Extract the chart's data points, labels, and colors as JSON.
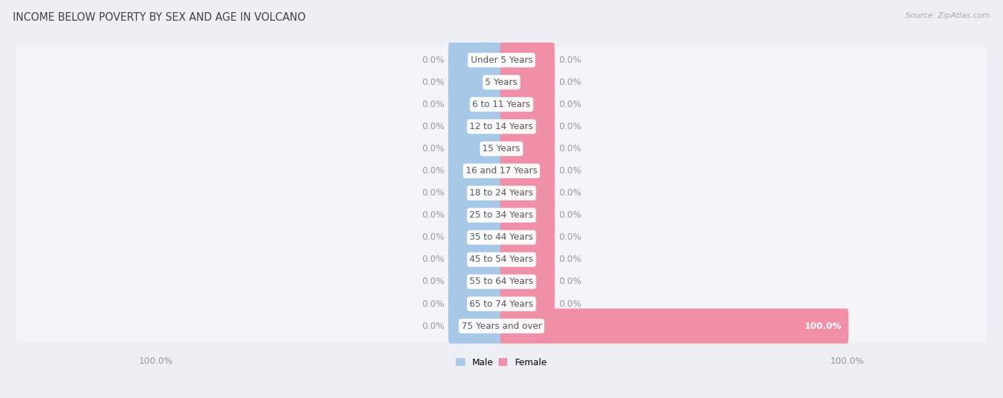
{
  "title": "INCOME BELOW POVERTY BY SEX AND AGE IN VOLCANO",
  "source": "Source: ZipAtlas.com",
  "categories": [
    "Under 5 Years",
    "5 Years",
    "6 to 11 Years",
    "12 to 14 Years",
    "15 Years",
    "16 and 17 Years",
    "18 to 24 Years",
    "25 to 34 Years",
    "35 to 44 Years",
    "45 to 54 Years",
    "55 to 64 Years",
    "65 to 74 Years",
    "75 Years and over"
  ],
  "male_values": [
    0.0,
    0.0,
    0.0,
    0.0,
    0.0,
    0.0,
    0.0,
    0.0,
    0.0,
    0.0,
    0.0,
    0.0,
    0.0
  ],
  "female_values": [
    0.0,
    0.0,
    0.0,
    0.0,
    0.0,
    0.0,
    0.0,
    0.0,
    0.0,
    0.0,
    0.0,
    0.0,
    100.0
  ],
  "male_color": "#a8c8e8",
  "female_color": "#f090a8",
  "male_label": "Male",
  "female_label": "Female",
  "bg_color": "#eeeff4",
  "row_bg_color": "#f5f5f9",
  "row_sep_color": "#d8d8e0",
  "label_color": "#999999",
  "title_color": "#404040",
  "source_color": "#aaaaaa",
  "value_label_fontsize": 9,
  "category_fontsize": 9,
  "axis_label_fontsize": 9,
  "xlim": 100.0,
  "default_bar_width": 15.0,
  "label_pill_color": "#ffffff",
  "label_text_color": "#555555",
  "value_inside_color": "#ffffff",
  "value_outside_color": "#999999"
}
